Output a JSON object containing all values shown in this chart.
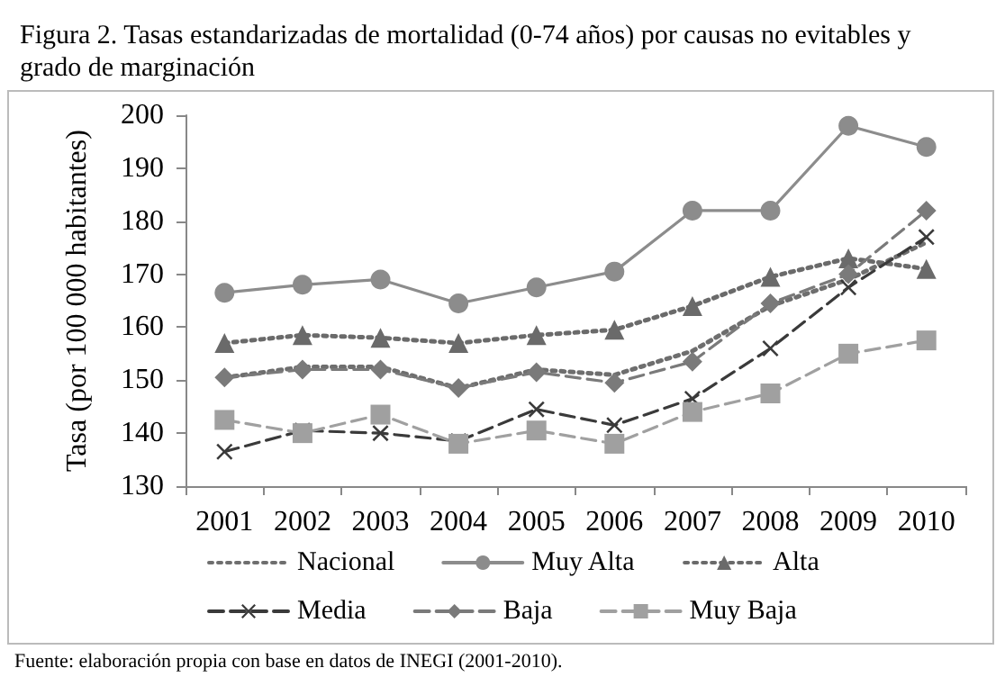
{
  "chart_data": {
    "type": "line",
    "title": "Figura 2. Tasas estandarizadas de mortalidad (0-74 años) por causas no evitables y grado de marginación",
    "ylabel": "Tasa (por 100 000 habitantes)",
    "categories": [
      "2001",
      "2002",
      "2003",
      "2004",
      "2005",
      "2006",
      "2007",
      "2008",
      "2009",
      "2010"
    ],
    "series": [
      {
        "name": "Nacional",
        "color": "#6e6e6e",
        "marker": "none",
        "line_style": "dotted",
        "values": [
          150.5,
          152.5,
          152.5,
          148.5,
          152,
          151,
          155.5,
          164,
          169,
          176
        ]
      },
      {
        "name": "Muy Alta",
        "color": "#8c8c8c",
        "marker": "circle",
        "line_style": "solid",
        "values": [
          166.5,
          168,
          169,
          164.5,
          167.5,
          170.5,
          182,
          182,
          198,
          194
        ]
      },
      {
        "name": "Alta",
        "color": "#6a6a6a",
        "marker": "triangle",
        "line_style": "dotted",
        "values": [
          157,
          158.5,
          158,
          157,
          158.5,
          159.5,
          164,
          169.5,
          173,
          171
        ]
      },
      {
        "name": "Media",
        "color": "#3a3a3a",
        "marker": "cross",
        "line_style": "dashed",
        "values": [
          136.5,
          140.5,
          140,
          138.5,
          144.5,
          141.5,
          146.5,
          156,
          167.5,
          177
        ]
      },
      {
        "name": "Baja",
        "color": "#7a7a7a",
        "marker": "diamond",
        "line_style": "dashed",
        "values": [
          150.5,
          152,
          152,
          148.5,
          151.5,
          149.5,
          153.5,
          164.5,
          170,
          182
        ]
      },
      {
        "name": "Muy Baja",
        "color": "#a0a0a0",
        "marker": "square",
        "line_style": "dashed",
        "values": [
          142.5,
          140,
          143.5,
          138,
          140.5,
          138,
          144,
          147.5,
          155,
          157.5
        ]
      }
    ],
    "ylim": [
      130,
      200
    ],
    "yticks": [
      130,
      140,
      150,
      160,
      170,
      180,
      190,
      200
    ],
    "grid": false,
    "legend": "bottom",
    "annotations": [
      "Fuente: elaboración propia con base en datos de INEGI (2001-2010)."
    ]
  }
}
